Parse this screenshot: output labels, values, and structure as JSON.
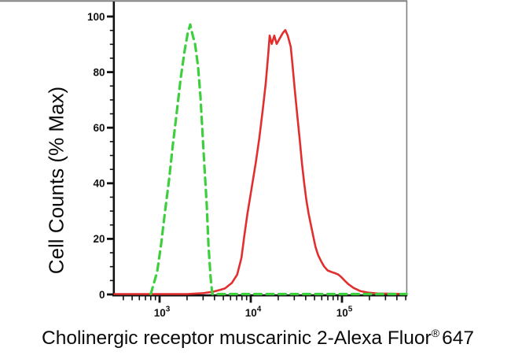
{
  "chart_data": {
    "type": "line",
    "title": "",
    "xlabel": "Cholinergic receptor muscarinic 2-Alexa Fluor® 647",
    "xlabel_parts": {
      "main": "Cholinergic receptor muscarinic 2-Alexa Fluor",
      "sup": "®",
      "suffix": "647"
    },
    "ylabel": "Cell Counts (% Max)",
    "x_scale": "log",
    "x_range": [
      310,
      510000
    ],
    "y_range": [
      0,
      100
    ],
    "y_ticks": [
      0,
      20,
      40,
      60,
      80,
      100
    ],
    "y_minor_step": 5,
    "x_decade_ticks": [
      1000,
      10000,
      100000
    ],
    "grid": "off",
    "legend": "none",
    "frame_color": "#818181",
    "axis_color": "#111111",
    "series": [
      {
        "name": "red-solid-curve",
        "style": "solid",
        "color": "#e12f2f",
        "peak_value": 23900,
        "peak_pct": 95,
        "points": [
          [
            320,
            0
          ],
          [
            1000,
            0
          ],
          [
            2000,
            0
          ],
          [
            3000,
            0.3
          ],
          [
            3800,
            0.8
          ],
          [
            4600,
            1.5
          ],
          [
            5200,
            2
          ],
          [
            6200,
            4
          ],
          [
            7100,
            7
          ],
          [
            7900,
            13
          ],
          [
            8500,
            21
          ],
          [
            9200,
            29
          ],
          [
            10200,
            38
          ],
          [
            11300,
            47
          ],
          [
            12400,
            56
          ],
          [
            13500,
            66
          ],
          [
            14600,
            76
          ],
          [
            15500,
            86
          ],
          [
            16100,
            93
          ],
          [
            17000,
            90
          ],
          [
            18100,
            93
          ],
          [
            19200,
            90
          ],
          [
            20800,
            92
          ],
          [
            22500,
            94
          ],
          [
            23900,
            95
          ],
          [
            25400,
            93
          ],
          [
            27400,
            89
          ],
          [
            28600,
            83
          ],
          [
            30300,
            74
          ],
          [
            32200,
            65
          ],
          [
            34300,
            56
          ],
          [
            36400,
            47
          ],
          [
            38500,
            40
          ],
          [
            40600,
            34
          ],
          [
            43000,
            29
          ],
          [
            45600,
            25
          ],
          [
            48300,
            21
          ],
          [
            51200,
            17
          ],
          [
            54800,
            14
          ],
          [
            58600,
            12
          ],
          [
            63500,
            10
          ],
          [
            69500,
            8.5
          ],
          [
            76000,
            8
          ],
          [
            84000,
            7.5
          ],
          [
            91500,
            7
          ],
          [
            99000,
            6
          ],
          [
            106000,
            5
          ],
          [
            118000,
            3.5
          ],
          [
            134000,
            2.2
          ],
          [
            158000,
            1.1
          ],
          [
            193000,
            0.5
          ],
          [
            245000,
            0.2
          ],
          [
            510000,
            0
          ]
        ]
      },
      {
        "name": "green-dashed-curve",
        "style": "dashed",
        "color": "#3ecf3e",
        "peak_value": 2170,
        "peak_pct": 97,
        "points": [
          [
            800,
            0
          ],
          [
            940,
            8
          ],
          [
            1040,
            18
          ],
          [
            1140,
            29
          ],
          [
            1270,
            41
          ],
          [
            1400,
            54
          ],
          [
            1550,
            66
          ],
          [
            1710,
            78
          ],
          [
            1890,
            88
          ],
          [
            2040,
            94
          ],
          [
            2170,
            97
          ],
          [
            2310,
            93
          ],
          [
            2450,
            90
          ],
          [
            2640,
            82
          ],
          [
            2810,
            71
          ],
          [
            2930,
            60
          ],
          [
            3100,
            46
          ],
          [
            3290,
            32
          ],
          [
            3430,
            18
          ],
          [
            3630,
            6
          ],
          [
            3780,
            0
          ],
          [
            5000,
            0
          ],
          [
            10000,
            0
          ],
          [
            20000,
            0
          ],
          [
            50000,
            0
          ],
          [
            100000,
            0
          ],
          [
            200000,
            0
          ],
          [
            510000,
            0
          ]
        ]
      }
    ]
  }
}
